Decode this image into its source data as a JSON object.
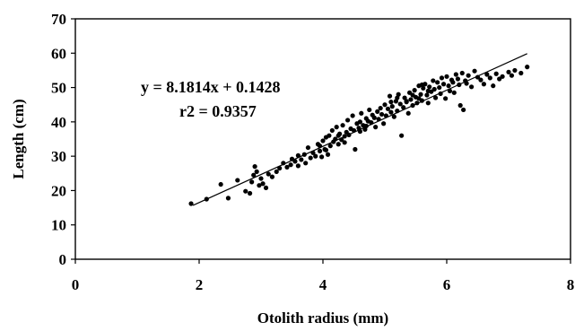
{
  "chart_data": {
    "type": "scatter",
    "title": "",
    "xlabel": "Otolith radius (mm)",
    "ylabel": "Length (cm)",
    "xlim": [
      0,
      8
    ],
    "ylim": [
      0,
      70
    ],
    "xticks": [
      "0",
      "2",
      "4",
      "6",
      "8"
    ],
    "yticks": [
      "0",
      "10",
      "20",
      "30",
      "40",
      "50",
      "60",
      "70"
    ],
    "grid": false,
    "legend": "none",
    "annotations": [
      "y = 8.1814x + 0.1428",
      "r2 = 0.9357"
    ],
    "trendline": {
      "slope": 8.1814,
      "intercept": 0.1428,
      "x_range": [
        1.9,
        7.3
      ]
    },
    "point_color": "#000000",
    "points": [
      [
        1.87,
        16.2
      ],
      [
        2.12,
        17.5
      ],
      [
        2.35,
        21.8
      ],
      [
        2.47,
        17.8
      ],
      [
        2.62,
        23.0
      ],
      [
        2.75,
        19.8
      ],
      [
        2.82,
        19.2
      ],
      [
        2.85,
        22.5
      ],
      [
        2.88,
        24.5
      ],
      [
        2.9,
        27.0
      ],
      [
        2.93,
        25.5
      ],
      [
        2.97,
        21.5
      ],
      [
        3.0,
        23.5
      ],
      [
        3.03,
        22.0
      ],
      [
        3.08,
        20.8
      ],
      [
        3.12,
        24.8
      ],
      [
        3.18,
        24.0
      ],
      [
        3.25,
        25.5
      ],
      [
        3.3,
        26.5
      ],
      [
        3.36,
        28.0
      ],
      [
        3.42,
        26.8
      ],
      [
        3.48,
        27.5
      ],
      [
        3.55,
        28.5
      ],
      [
        3.6,
        27.2
      ],
      [
        3.65,
        29.0
      ],
      [
        3.7,
        30.5
      ],
      [
        3.72,
        28.0
      ],
      [
        3.76,
        32.5
      ],
      [
        3.8,
        29.5
      ],
      [
        3.84,
        31.0
      ],
      [
        3.88,
        30.0
      ],
      [
        3.92,
        33.5
      ],
      [
        3.95,
        31.5
      ],
      [
        3.98,
        29.8
      ],
      [
        4.0,
        34.5
      ],
      [
        4.03,
        32.0
      ],
      [
        4.05,
        35.5
      ],
      [
        4.08,
        30.5
      ],
      [
        4.1,
        36.0
      ],
      [
        4.12,
        33.0
      ],
      [
        4.15,
        37.5
      ],
      [
        4.17,
        34.2
      ],
      [
        4.2,
        35.0
      ],
      [
        4.22,
        38.5
      ],
      [
        4.25,
        33.5
      ],
      [
        4.27,
        36.5
      ],
      [
        4.3,
        34.8
      ],
      [
        4.32,
        39.0
      ],
      [
        4.35,
        35.8
      ],
      [
        4.38,
        37.0
      ],
      [
        4.4,
        40.5
      ],
      [
        4.42,
        36.2
      ],
      [
        4.45,
        38.0
      ],
      [
        4.48,
        41.8
      ],
      [
        4.5,
        37.5
      ],
      [
        4.52,
        32.0
      ],
      [
        4.55,
        39.5
      ],
      [
        4.58,
        38.2
      ],
      [
        4.6,
        40.0
      ],
      [
        4.62,
        42.5
      ],
      [
        4.65,
        39.0
      ],
      [
        4.68,
        37.8
      ],
      [
        4.7,
        41.0
      ],
      [
        4.73,
        40.2
      ],
      [
        4.75,
        43.5
      ],
      [
        4.78,
        39.8
      ],
      [
        4.8,
        42.0
      ],
      [
        4.83,
        41.2
      ],
      [
        4.85,
        38.5
      ],
      [
        4.88,
        43.0
      ],
      [
        4.9,
        40.8
      ],
      [
        4.93,
        44.0
      ],
      [
        4.95,
        42.2
      ],
      [
        4.98,
        39.5
      ],
      [
        5.0,
        45.0
      ],
      [
        5.02,
        41.8
      ],
      [
        5.05,
        43.8
      ],
      [
        5.08,
        47.5
      ],
      [
        5.1,
        42.8
      ],
      [
        5.12,
        44.5
      ],
      [
        5.15,
        41.5
      ],
      [
        5.18,
        46.0
      ],
      [
        5.2,
        43.2
      ],
      [
        5.22,
        48.0
      ],
      [
        5.25,
        45.2
      ],
      [
        5.27,
        36.0
      ],
      [
        5.3,
        44.2
      ],
      [
        5.32,
        47.0
      ],
      [
        5.35,
        45.8
      ],
      [
        5.38,
        42.5
      ],
      [
        5.4,
        48.5
      ],
      [
        5.42,
        46.5
      ],
      [
        5.45,
        44.8
      ],
      [
        5.48,
        49.2
      ],
      [
        5.5,
        47.2
      ],
      [
        5.52,
        45.5
      ],
      [
        5.55,
        50.5
      ],
      [
        5.58,
        48.0
      ],
      [
        5.6,
        46.2
      ],
      [
        5.62,
        49.8
      ],
      [
        5.65,
        51.0
      ],
      [
        5.68,
        47.8
      ],
      [
        5.7,
        45.5
      ],
      [
        5.72,
        50.2
      ],
      [
        5.75,
        48.8
      ],
      [
        5.78,
        52.0
      ],
      [
        5.8,
        49.5
      ],
      [
        5.82,
        47.0
      ],
      [
        5.85,
        51.5
      ],
      [
        5.88,
        50.0
      ],
      [
        5.9,
        48.2
      ],
      [
        5.92,
        52.8
      ],
      [
        5.95,
        51.0
      ],
      [
        5.98,
        46.8
      ],
      [
        6.0,
        53.2
      ],
      [
        6.03,
        50.5
      ],
      [
        6.05,
        49.0
      ],
      [
        6.08,
        52.2
      ],
      [
        6.1,
        51.5
      ],
      [
        6.12,
        48.5
      ],
      [
        6.15,
        53.8
      ],
      [
        6.18,
        52.5
      ],
      [
        6.2,
        50.8
      ],
      [
        6.22,
        44.8
      ],
      [
        6.25,
        54.2
      ],
      [
        6.27,
        43.5
      ],
      [
        6.3,
        52.0
      ],
      [
        6.32,
        51.2
      ],
      [
        6.35,
        53.5
      ],
      [
        6.4,
        50.2
      ],
      [
        6.45,
        54.8
      ],
      [
        6.5,
        53.0
      ],
      [
        6.55,
        52.2
      ],
      [
        6.6,
        51.0
      ],
      [
        6.65,
        53.8
      ],
      [
        6.7,
        52.8
      ],
      [
        6.75,
        50.5
      ],
      [
        6.8,
        54.0
      ],
      [
        6.85,
        52.5
      ],
      [
        6.9,
        53.2
      ],
      [
        7.0,
        54.5
      ],
      [
        7.05,
        53.5
      ],
      [
        7.1,
        55.0
      ],
      [
        7.2,
        54.2
      ],
      [
        7.3,
        56.0
      ],
      [
        5.35,
        46.0
      ],
      [
        5.45,
        47.8
      ],
      [
        5.55,
        46.8
      ],
      [
        4.6,
        37.2
      ],
      [
        4.7,
        38.8
      ],
      [
        3.95,
        33.0
      ],
      [
        4.05,
        31.8
      ],
      [
        4.25,
        36.0
      ],
      [
        4.35,
        34.0
      ],
      [
        3.5,
        29.2
      ],
      [
        3.6,
        30.2
      ],
      [
        5.1,
        45.8
      ],
      [
        5.2,
        47.0
      ],
      [
        5.6,
        50.8
      ],
      [
        5.7,
        49.0
      ]
    ]
  }
}
